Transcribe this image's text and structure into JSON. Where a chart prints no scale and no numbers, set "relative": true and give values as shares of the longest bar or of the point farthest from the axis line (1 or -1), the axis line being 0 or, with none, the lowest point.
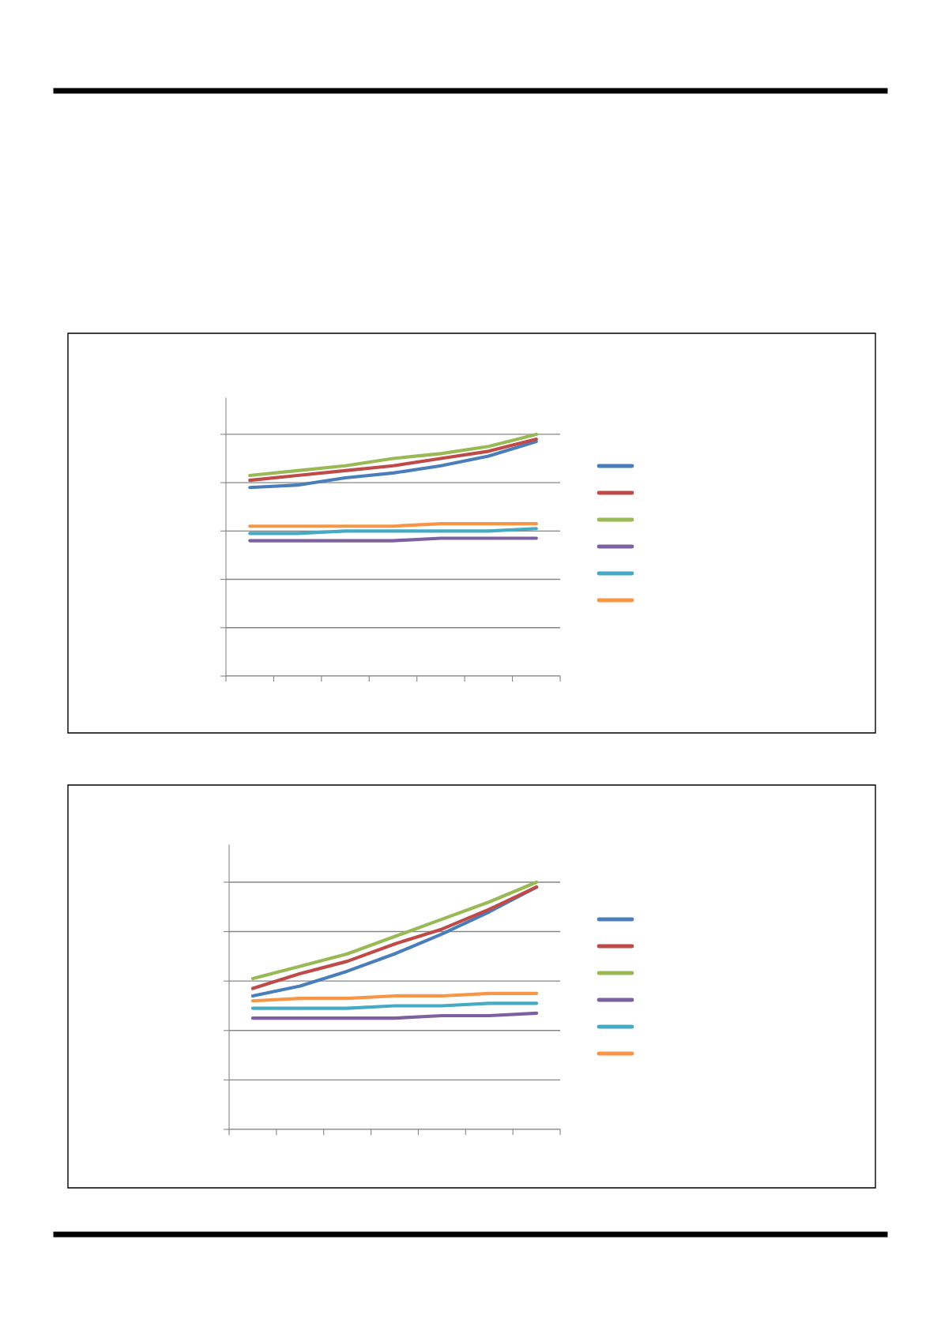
{
  "chart_data": [
    {
      "type": "line",
      "relative": true,
      "grid": "y",
      "line_style": "solid",
      "marker": "none",
      "tick_labels": false,
      "categories": [
        null,
        null,
        null,
        null,
        null,
        null,
        null
      ],
      "series": [
        {
          "color": "#4a7ebb",
          "values": [
            0.78,
            0.79,
            0.82,
            0.84,
            0.87,
            0.91,
            0.97
          ]
        },
        {
          "color": "#be4b48",
          "values": [
            0.81,
            0.83,
            0.85,
            0.87,
            0.9,
            0.93,
            0.98
          ]
        },
        {
          "color": "#98b954",
          "values": [
            0.83,
            0.85,
            0.87,
            0.9,
            0.92,
            0.95,
            1.0
          ]
        },
        {
          "color": "#7d60a0",
          "values": [
            0.56,
            0.56,
            0.56,
            0.56,
            0.57,
            0.57,
            0.57
          ]
        },
        {
          "color": "#46aac5",
          "values": [
            0.59,
            0.59,
            0.6,
            0.6,
            0.6,
            0.6,
            0.61
          ]
        },
        {
          "color": "#f79646",
          "values": [
            0.62,
            0.62,
            0.62,
            0.62,
            0.63,
            0.63,
            0.63
          ]
        }
      ]
    },
    {
      "type": "line",
      "relative": true,
      "grid": "y",
      "line_style": "solid",
      "marker": "none",
      "tick_labels": false,
      "categories": [
        null,
        null,
        null,
        null,
        null,
        null,
        null
      ],
      "series": [
        {
          "color": "#4a7ebb",
          "values": [
            0.54,
            0.58,
            0.64,
            0.71,
            0.79,
            0.88,
            0.98
          ]
        },
        {
          "color": "#be4b48",
          "values": [
            0.57,
            0.63,
            0.68,
            0.75,
            0.81,
            0.89,
            0.98
          ]
        },
        {
          "color": "#98b954",
          "values": [
            0.61,
            0.66,
            0.71,
            0.78,
            0.85,
            0.92,
            1.0
          ]
        },
        {
          "color": "#7d60a0",
          "values": [
            0.45,
            0.45,
            0.45,
            0.45,
            0.46,
            0.46,
            0.47
          ]
        },
        {
          "color": "#46aac5",
          "values": [
            0.49,
            0.49,
            0.49,
            0.5,
            0.5,
            0.51,
            0.51
          ]
        },
        {
          "color": "#f79646",
          "values": [
            0.52,
            0.53,
            0.53,
            0.54,
            0.54,
            0.55,
            0.55
          ]
        }
      ]
    }
  ]
}
